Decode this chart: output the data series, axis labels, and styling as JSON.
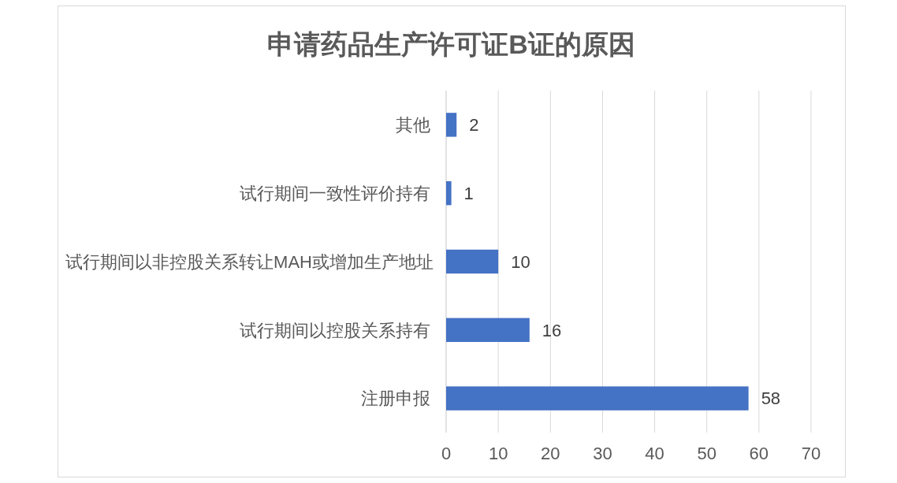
{
  "chart_data": {
    "type": "bar",
    "orientation": "horizontal",
    "title": "申请药品生产许可证B证的原因",
    "categories": [
      "其他",
      "试行期间一致性评价持有",
      "试行期间以非控股关系转让MAH或增加生产地址",
      "试行期间以控股关系持有",
      "注册申报"
    ],
    "values": [
      2,
      1,
      10,
      16,
      58
    ],
    "color": "#4472c4",
    "xlim": [
      0,
      70
    ],
    "xticks": [
      0,
      10,
      20,
      30,
      40,
      50,
      60,
      70
    ],
    "grid": "x",
    "data_labels": true
  }
}
